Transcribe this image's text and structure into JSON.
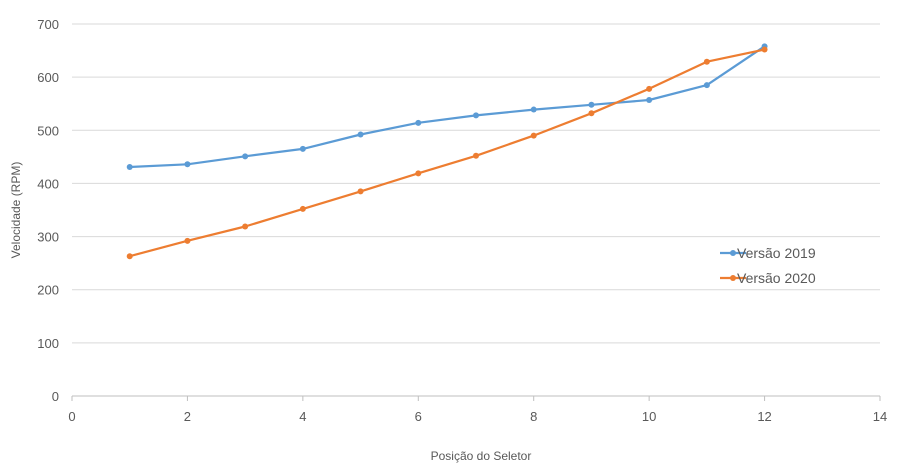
{
  "chart_data": {
    "type": "line",
    "title": "",
    "xlabel": "Posição do Seletor",
    "ylabel": "Velocidade (RPM)",
    "xlim": [
      0,
      14
    ],
    "ylim": [
      0,
      700
    ],
    "x_ticks": [
      0,
      2,
      4,
      6,
      8,
      10,
      12,
      14
    ],
    "y_ticks": [
      0,
      100,
      200,
      300,
      400,
      500,
      600,
      700
    ],
    "grid": true,
    "legend_position": "right",
    "series": [
      {
        "name": "Versão 2019",
        "color": "#5B9BD5",
        "x": [
          1,
          2,
          3,
          4,
          5,
          6,
          7,
          8,
          9,
          10,
          11,
          12
        ],
        "y": [
          431,
          436,
          451,
          465,
          492,
          514,
          528,
          539,
          548,
          557,
          585,
          658
        ]
      },
      {
        "name": "Versão 2020",
        "color": "#ED7D31",
        "x": [
          1,
          2,
          3,
          4,
          5,
          6,
          7,
          8,
          9,
          10,
          11,
          12
        ],
        "y": [
          263,
          292,
          319,
          352,
          385,
          419,
          452,
          490,
          532,
          578,
          629,
          652
        ]
      }
    ]
  }
}
